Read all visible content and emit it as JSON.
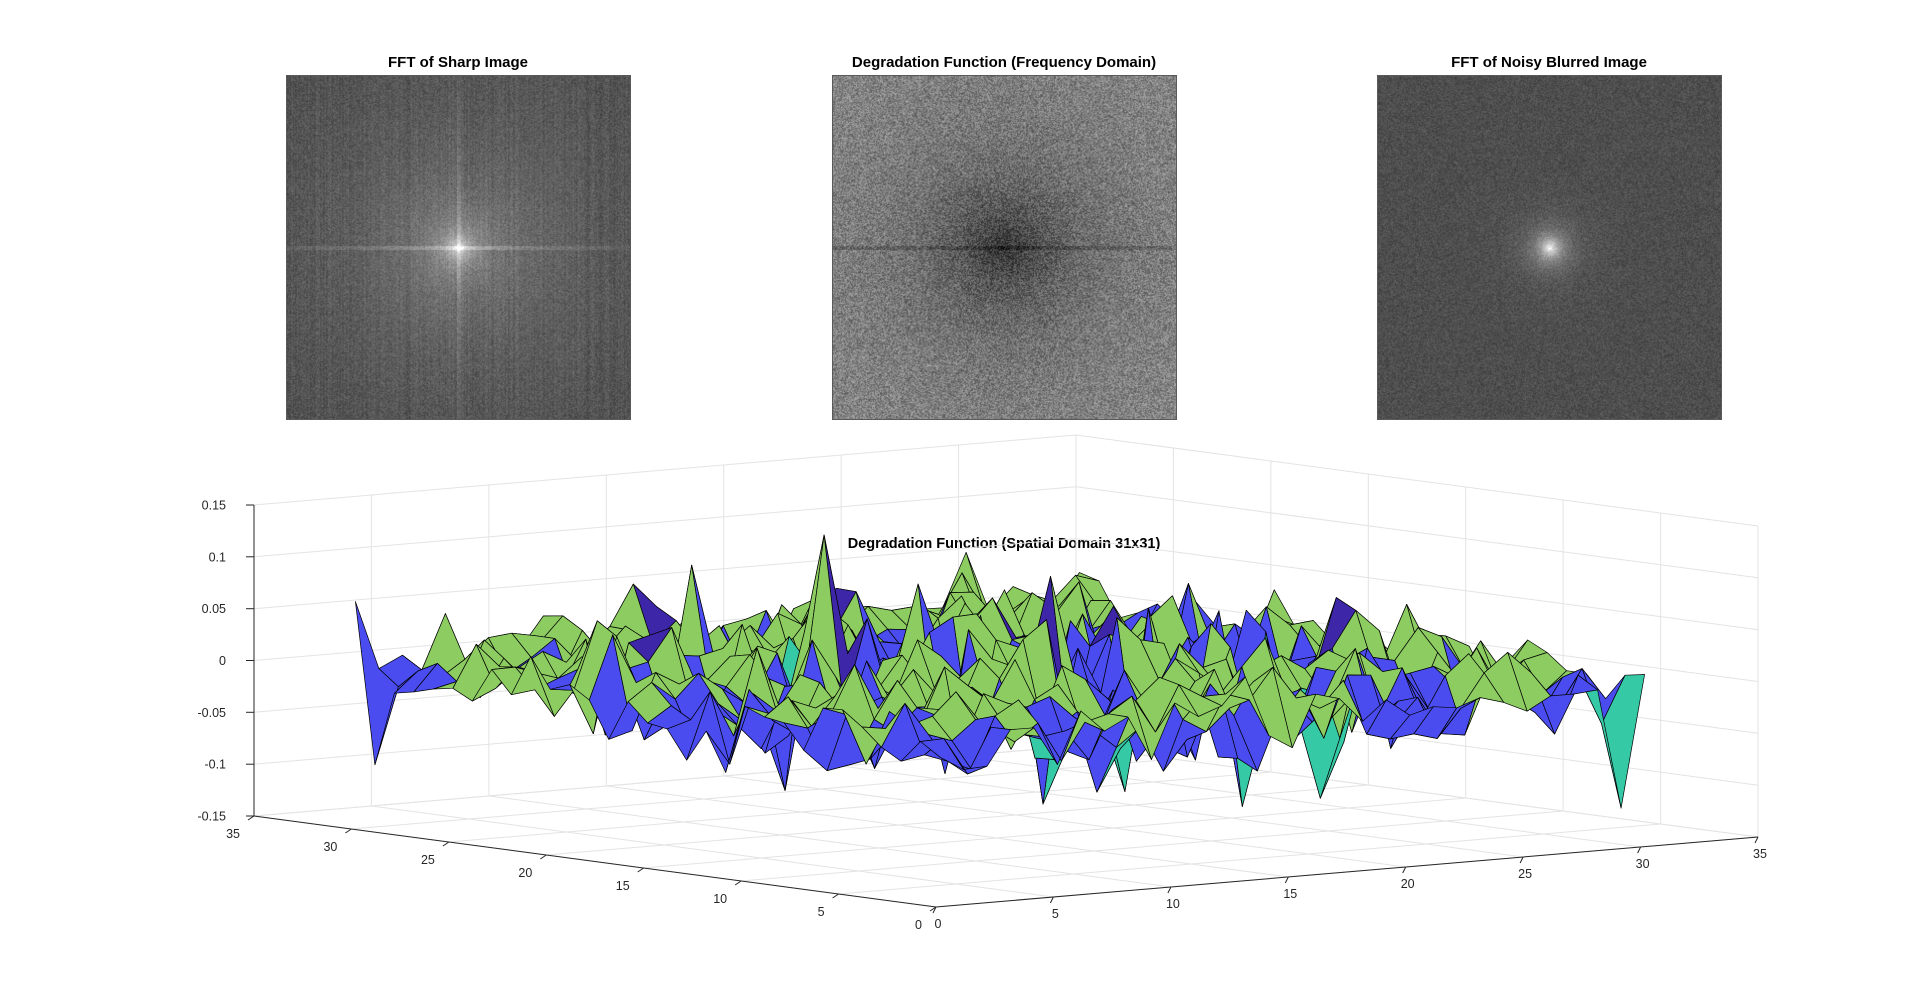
{
  "figure": {
    "panels": [
      {
        "title": "FFT of Sharp Image",
        "kind": "sharp"
      },
      {
        "title": "Degradation Function (Frequency Domain)",
        "kind": "degradation"
      },
      {
        "title": "FFT of Noisy Blurred Image",
        "kind": "noisy"
      }
    ]
  },
  "chart_data": {
    "type": "surface",
    "title": "Degradation Function (Spatial Domain 31x31)",
    "grid": true,
    "colormap": [
      "#3e26a8",
      "#4a4cf0",
      "#2f8df6",
      "#19b5d5",
      "#36c9a6",
      "#8ccc61",
      "#d9ba2c",
      "#f4d61f"
    ],
    "size": [
      31,
      31
    ],
    "xlim": [
      0,
      35
    ],
    "ylim": [
      0,
      35
    ],
    "zlim": [
      -0.15,
      0.15
    ],
    "xticks": [
      "0",
      "5",
      "10",
      "15",
      "20",
      "25",
      "30",
      "35"
    ],
    "yticks": [
      "0",
      "5",
      "10",
      "15",
      "20",
      "25",
      "30",
      "35"
    ],
    "zticks": [
      "-0.15",
      "-0.1",
      "-0.05",
      "0",
      "0.05",
      "0.1",
      "0.15"
    ]
  }
}
